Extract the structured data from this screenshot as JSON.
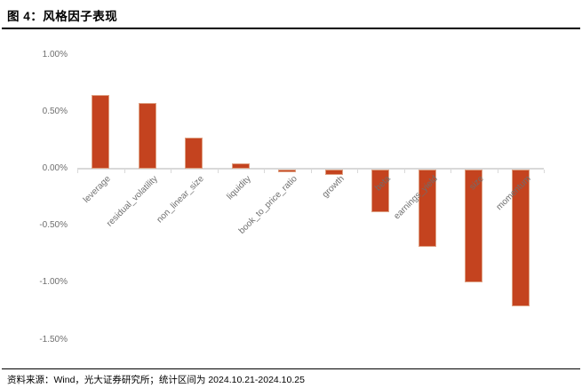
{
  "header": {
    "title": "图 4：风格因子表现"
  },
  "footer": {
    "source": "资料来源：Wind，光大证券研究所；统计区间为 2024.10.21-2024.10.25"
  },
  "chart_data": {
    "type": "bar",
    "title": "风格因子表现",
    "categories": [
      "leverage",
      "residual_volatility",
      "non_linear_size",
      "liquidity",
      "book_to_price_ratio",
      "growth",
      "beta",
      "earnings_yield",
      "size",
      "momentum"
    ],
    "values": [
      0.65,
      0.58,
      0.27,
      0.05,
      -0.02,
      -0.05,
      -0.37,
      -0.68,
      -0.99,
      -1.2
    ],
    "unit": "%",
    "xlabel": "",
    "ylabel": "",
    "ylim": [
      -1.5,
      1.0
    ],
    "y_ticks": [
      "1.00%",
      "0.50%",
      "0.00%",
      "-0.50%",
      "-1.00%",
      "-1.50%"
    ],
    "y_tick_values": [
      1.0,
      0.5,
      0.0,
      -0.5,
      -1.0,
      -1.5
    ],
    "grid": false,
    "legend": false,
    "bar_color": "#C4431F",
    "bar_border_color": "#DEA082",
    "axis_color": "#D9D9D9",
    "label_color": "#6E6E6E"
  }
}
